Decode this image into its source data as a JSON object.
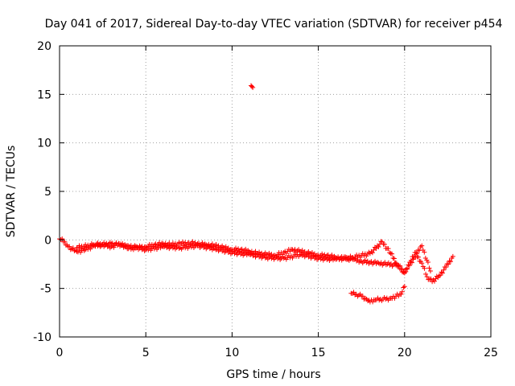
{
  "chart_data": {
    "type": "scatter",
    "title": "Day 041 of 2017, Sidereal Day-to-day VTEC variation (SDTVAR) for receiver p454",
    "xlabel": "GPS time / hours",
    "ylabel": "SDTVAR / TECUs",
    "xlim": [
      0,
      25
    ],
    "ylim": [
      -10,
      20
    ],
    "xticks": [
      0,
      5,
      10,
      15,
      20,
      25
    ],
    "yticks": [
      -10,
      -5,
      0,
      5,
      10,
      15,
      20
    ],
    "grid": true,
    "marker": "+",
    "series_color": "#ff0000",
    "series": [
      {
        "name": "main band",
        "x": [
          0.0,
          0.3,
          0.5,
          1.0,
          1.5,
          2.0,
          2.5,
          3.0,
          3.5,
          4.0,
          4.5,
          5.0,
          5.5,
          6.0,
          6.5,
          7.0,
          7.5,
          8.0,
          8.5,
          9.0,
          9.5,
          10.0,
          10.5,
          11.0,
          11.5,
          12.0,
          12.5,
          13.0,
          13.5,
          14.0,
          14.5,
          15.0,
          15.5,
          16.0,
          16.5,
          17.0,
          17.5,
          18.0,
          18.5,
          19.0,
          19.5,
          19.8,
          20.0,
          20.3,
          20.6,
          21.0,
          21.3,
          21.6,
          22.0,
          22.4,
          22.8
        ],
        "y": [
          0.1,
          -0.2,
          -0.7,
          -1.2,
          -1.0,
          -0.6,
          -0.5,
          -0.7,
          -0.4,
          -0.9,
          -0.8,
          -0.7,
          -0.5,
          -0.4,
          -0.5,
          -0.4,
          -0.3,
          -0.4,
          -0.5,
          -0.6,
          -0.8,
          -1.0,
          -1.0,
          -1.2,
          -1.4,
          -1.5,
          -1.6,
          -1.3,
          -1.0,
          -1.2,
          -1.4,
          -1.6,
          -1.6,
          -1.8,
          -1.9,
          -2.0,
          -2.2,
          -2.3,
          -2.4,
          -2.5,
          -2.6,
          -3.0,
          -3.4,
          -2.3,
          -1.3,
          -2.4,
          -3.8,
          -4.3,
          -3.7,
          -2.8,
          -1.7
        ]
      },
      {
        "name": "secondary band",
        "x": [
          1.0,
          2.0,
          3.0,
          4.0,
          5.0,
          6.0,
          7.0,
          8.0,
          9.0,
          10.0,
          11.0,
          12.0,
          13.0,
          14.0,
          15.0,
          16.0,
          17.0,
          18.0,
          18.7,
          19.2,
          19.6,
          20.0,
          20.5,
          21.0,
          21.5
        ],
        "y": [
          -0.8,
          -0.5,
          -0.4,
          -0.6,
          -1.0,
          -0.7,
          -0.8,
          -0.6,
          -0.9,
          -1.3,
          -1.5,
          -1.8,
          -1.9,
          -1.5,
          -1.9,
          -2.0,
          -1.8,
          -1.4,
          -0.2,
          -1.4,
          -2.6,
          -3.3,
          -2.0,
          -0.6,
          -3.2
        ]
      },
      {
        "name": "lower track",
        "x": [
          16.9,
          17.2,
          17.5,
          17.8,
          18.0,
          18.3,
          18.6,
          18.9,
          19.2,
          19.5,
          19.8,
          20.0
        ],
        "y": [
          -5.5,
          -5.6,
          -5.8,
          -6.1,
          -6.4,
          -6.2,
          -6.1,
          -6.1,
          -6.0,
          -5.8,
          -5.6,
          -4.8
        ]
      },
      {
        "name": "outlier",
        "x": [
          11.1,
          11.2
        ],
        "y": [
          15.9,
          15.7
        ]
      }
    ]
  }
}
